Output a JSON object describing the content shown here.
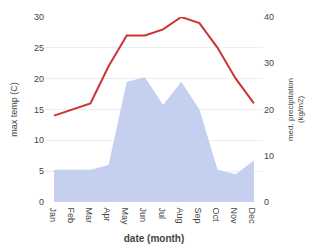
{
  "chart_data": {
    "type": "line",
    "xlabel": "date (month)",
    "ylabel": "max temp (C)",
    "y2label": "med. precipitation\n(kg/m2)",
    "categories": [
      "Jan",
      "Feb",
      "Mar",
      "Apr",
      "May",
      "Jun",
      "Jul",
      "Aug",
      "Sep",
      "Oct",
      "Nov",
      "Dec"
    ],
    "series": [
      {
        "type": "area",
        "color": "#c5cff0",
        "axis": "y2",
        "values": [
          7,
          7,
          7,
          8,
          26,
          27,
          21,
          26,
          20,
          7,
          6,
          9
        ]
      },
      {
        "type": "line",
        "color": "#cc3333",
        "values": [
          14,
          15,
          16,
          22,
          27,
          27,
          28,
          30,
          29,
          25,
          20,
          16
        ]
      }
    ],
    "ylim": [
      0,
      30
    ],
    "yticks": [
      0,
      5,
      10,
      15,
      20,
      25,
      30
    ],
    "y2lim": [
      0,
      40
    ],
    "y2ticks": [
      0,
      10,
      20,
      30,
      40
    ],
    "grid": true
  }
}
